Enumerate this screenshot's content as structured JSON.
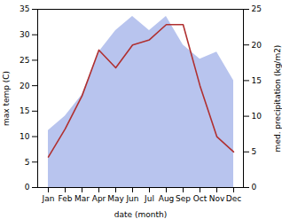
{
  "chart_data": {
    "type": "line",
    "categories": [
      "Jan",
      "Feb",
      "Mar",
      "Apr",
      "May",
      "Jun",
      "Jul",
      "Aug",
      "Sep",
      "Oct",
      "Nov",
      "Dec"
    ],
    "xlabel": "date (month)",
    "ylabel": "max temp (C)",
    "y2label": "med. precipitation (kg/m2)",
    "ylim": [
      0,
      35
    ],
    "yticks": [
      0,
      5,
      10,
      15,
      20,
      25,
      30,
      35
    ],
    "y2lim": [
      0,
      25
    ],
    "y2ticks": [
      0,
      5,
      10,
      15,
      20,
      25
    ],
    "series": [
      {
        "type": "area",
        "axis": "y2",
        "color": "#b8c4ee",
        "values": [
          8,
          10,
          13,
          19,
          22,
          24,
          22,
          24,
          20,
          18,
          19,
          15
        ]
      },
      {
        "type": "line",
        "color": "#b03030",
        "values": [
          6,
          11.5,
          18,
          27,
          23.5,
          28,
          29,
          32,
          32,
          20,
          10,
          7
        ]
      }
    ]
  }
}
